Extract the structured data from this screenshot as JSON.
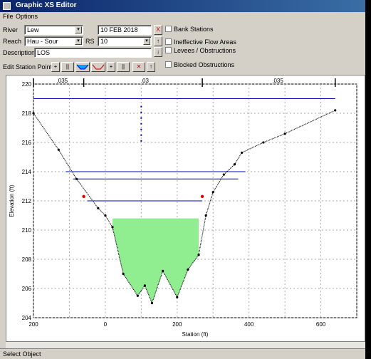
{
  "window": {
    "title": "Graphic XS Editor"
  },
  "menu": {
    "items": [
      "File",
      "Options"
    ]
  },
  "controls": {
    "river_label": "River",
    "river_value": "Lew",
    "reach_label": "Reach",
    "reach_value": "Hau - Sour",
    "rs_label": "RS",
    "rs_value": "10",
    "date_value": "10 FEB 2018",
    "description_label": "Description",
    "description_value": "LOS",
    "edit_toolbar_label": "Edit Station Points:",
    "checkbox_1": "Bank Stations",
    "checkbox_2": "Ineffective Flow Areas",
    "checkbox_3": "Levees / Obstructions",
    "checkbox_4": "Blocked Obstructions"
  },
  "chart": {
    "xlabel": "Station (ft)",
    "ylabel": "Elevation (ft)",
    "xticks": [
      "200",
      "0",
      "200",
      "400",
      "600"
    ],
    "yticks": [
      "220",
      "218",
      "216",
      "214",
      "212",
      "210",
      "208",
      "206",
      "204"
    ],
    "top_labels": [
      ".035",
      ".03",
      ".035"
    ]
  },
  "chart_data": {
    "type": "line",
    "title": "",
    "xlabel": "Station (ft)",
    "ylabel": "Elevation (ft)",
    "xlim": [
      -200,
      700
    ],
    "ylim": [
      204,
      220
    ],
    "ground": {
      "x": [
        -200,
        -130,
        -80,
        -20,
        0,
        20,
        50,
        90,
        110,
        130,
        160,
        200,
        230,
        260,
        280,
        300,
        330,
        360,
        380,
        440,
        500,
        640
      ],
      "y": [
        218,
        215.5,
        213.5,
        211.5,
        211,
        210.2,
        207,
        205.5,
        206.2,
        205,
        207.2,
        205.4,
        207.3,
        208.3,
        211,
        212.6,
        213.8,
        214.5,
        215.3,
        216,
        216.6,
        218.2
      ]
    },
    "water_surfaces": [
      219,
      214,
      213.5,
      212
    ]
  },
  "status": {
    "text": "Select Object"
  }
}
